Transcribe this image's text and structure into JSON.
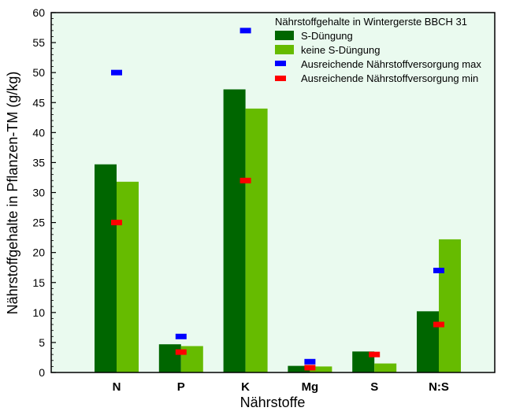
{
  "chart_data": {
    "type": "bar",
    "title": "",
    "xlabel": "Nährstoffe",
    "ylabel": "Nährstoffgehalte in Pflanzen-TM (g/kg)",
    "ylim": [
      0,
      60
    ],
    "yticks": [
      0,
      5,
      10,
      15,
      20,
      25,
      30,
      35,
      40,
      45,
      50,
      55,
      60
    ],
    "categories": [
      "N",
      "P",
      "K",
      "Mg",
      "S",
      "N:S"
    ],
    "series": [
      {
        "name": "S-Düngung",
        "values": [
          34.7,
          4.7,
          47.2,
          1.1,
          3.5,
          10.2
        ],
        "color": "#006600"
      },
      {
        "name": "keine S-Düngung",
        "values": [
          31.8,
          4.4,
          44.0,
          1.0,
          1.5,
          22.2
        ],
        "color": "#66bb00"
      }
    ],
    "markers": [
      {
        "name": "Ausreichende Nährstoffversorgung max",
        "values": [
          50,
          6,
          57,
          1.8,
          null,
          17
        ],
        "color": "#0000ff"
      },
      {
        "name": "Ausreichende Nährstoffversorgung min",
        "values": [
          25,
          3.4,
          32,
          0.8,
          3.0,
          8
        ],
        "color": "#ff0000"
      }
    ],
    "legend": {
      "title": "Nährstoffgehalte in Wintergerste BBCH 31",
      "position": "top-right"
    },
    "plot_background": "#eafaef",
    "grid": false
  }
}
